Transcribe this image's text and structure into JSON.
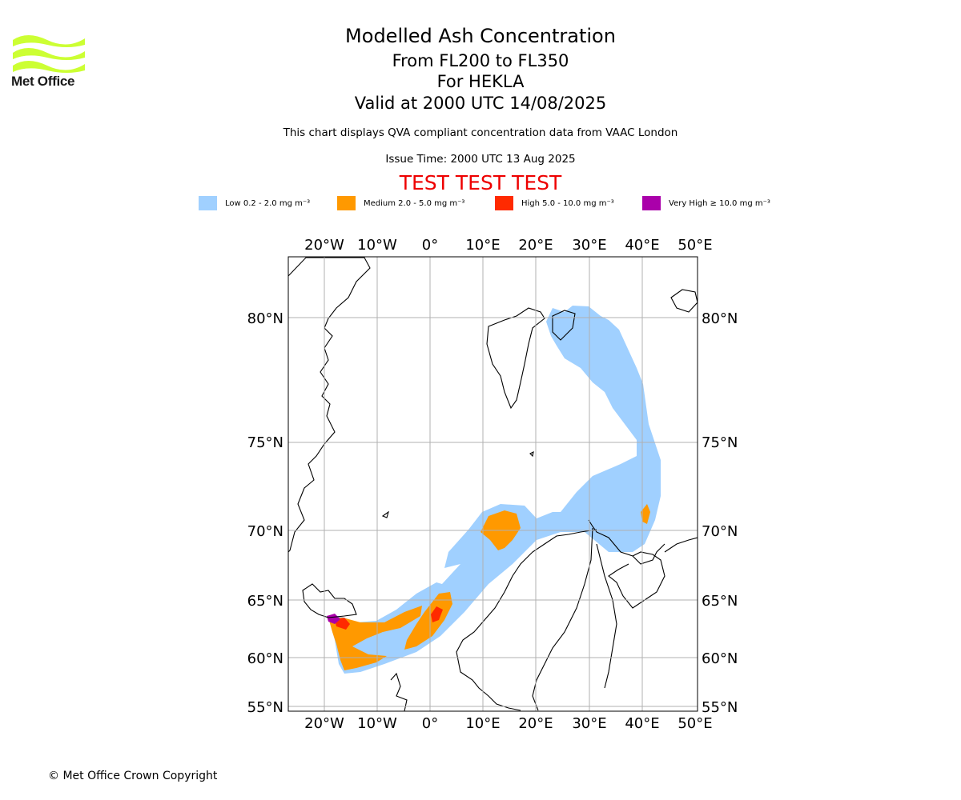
{
  "logo": {
    "text": "Met Office",
    "color": "#ccff33",
    "icon": "met-office-waves-icon"
  },
  "header": {
    "title": "Modelled Ash Concentration",
    "levels": "From FL200 to FL350",
    "volcano": "For HEKLA",
    "valid": "Valid at 2000 UTC 14/08/2025",
    "description": "This chart displays QVA compliant concentration data from VAAC London",
    "issue_time": "Issue Time: 2000 UTC 13 Aug 2025",
    "test_banner": "TEST TEST TEST"
  },
  "legend": [
    {
      "label": "Low 0.2 - 2.0 mg m⁻³",
      "color": "#a0d0ff"
    },
    {
      "label": "Medium 2.0 - 5.0 mg m⁻³",
      "color": "#ff9900"
    },
    {
      "label": "High 5.0 - 10.0 mg m⁻³",
      "color": "#ff2a00"
    },
    {
      "label": "Very High ≥ 10.0 mg m⁻³",
      "color": "#aa00aa"
    }
  ],
  "map": {
    "lon_ticks": [
      "20°W",
      "10°W",
      "0°",
      "10°E",
      "20°E",
      "30°E",
      "40°E",
      "50°E"
    ],
    "lat_ticks": [
      "80°N",
      "75°N",
      "70°N",
      "65°N",
      "60°N",
      "55°N"
    ]
  },
  "footer": {
    "copyright": "© Met Office Crown Copyright"
  }
}
